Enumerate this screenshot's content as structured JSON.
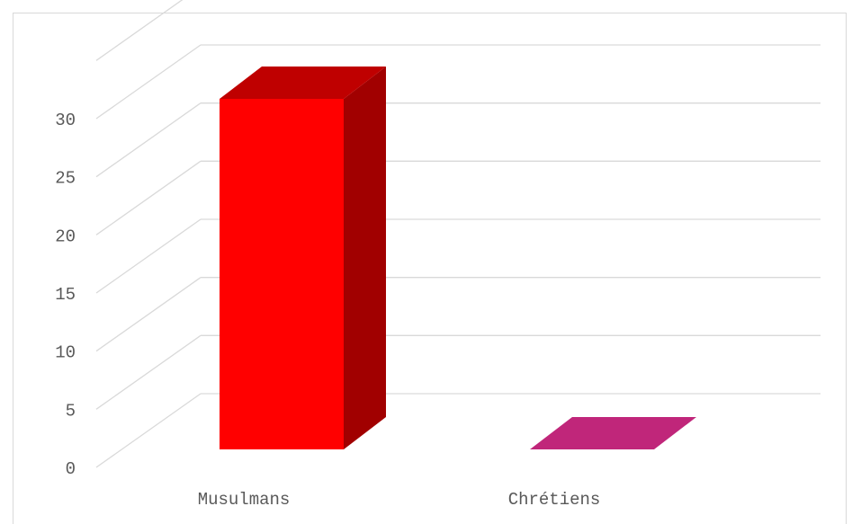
{
  "chart_data": {
    "type": "bar",
    "style": "3d-column",
    "categories": [
      "Musulmans",
      "Chrétiens"
    ],
    "values": [
      30,
      0
    ],
    "colors": [
      "#ff0000",
      "#c0267a"
    ],
    "ylim": [
      0,
      35
    ],
    "yticks": [
      "0",
      "5",
      "10",
      "15",
      "20",
      "25",
      "30"
    ],
    "grid": true,
    "legend": "none"
  }
}
